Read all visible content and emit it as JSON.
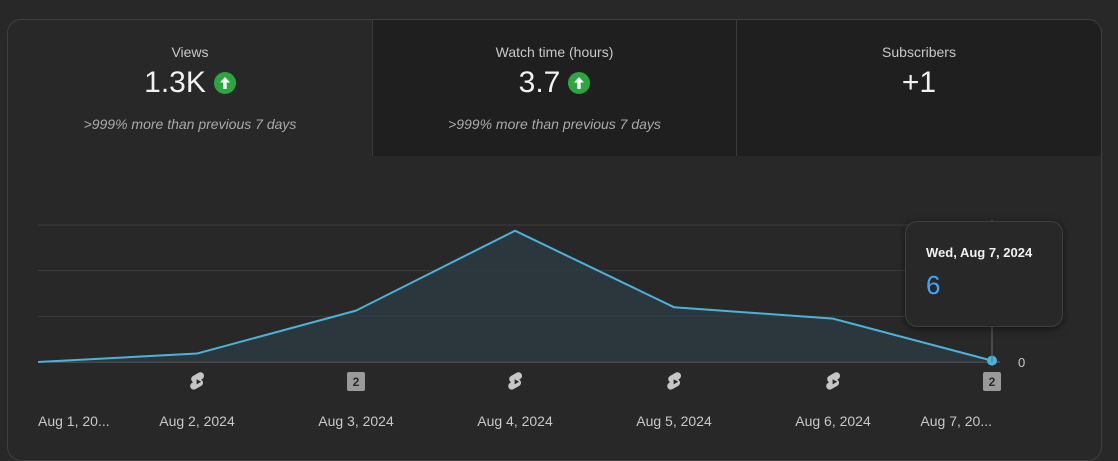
{
  "metrics": [
    {
      "label": "Views",
      "value": "1.3K",
      "trend": "up",
      "note": ">999% more than previous 7 days"
    },
    {
      "label": "Watch time (hours)",
      "value": "3.7",
      "trend": "up",
      "note": ">999% more than previous 7 days"
    },
    {
      "label": "Subscribers",
      "value": "+1"
    }
  ],
  "tooltip": {
    "date": "Wed, Aug 7, 2024",
    "value": "6"
  },
  "colors": {
    "line": "#4bb3d9",
    "trend_up": "#2ba640",
    "tooltip_value": "#3ea6ff"
  },
  "chart_data": {
    "type": "area",
    "x": [
      "Aug 1, 20...",
      "Aug 2, 2024",
      "Aug 3, 2024",
      "Aug 4, 2024",
      "Aug 5, 2024",
      "Aug 6, 2024",
      "Aug 7, 20..."
    ],
    "series": [
      {
        "values": [
          0,
          37,
          225,
          575,
          240,
          190,
          6
        ]
      }
    ],
    "yticks": [
      0,
      600
    ],
    "ylim": [
      0,
      600
    ],
    "grid": true,
    "markers": [
      {
        "icon": "shorts-icon",
        "label": ""
      },
      {
        "icon": "shorts-icon",
        "label": ""
      },
      {
        "icon": "count-badge",
        "label": "2"
      },
      {
        "icon": "shorts-icon",
        "label": ""
      },
      {
        "icon": "shorts-icon",
        "label": ""
      },
      {
        "icon": "shorts-icon",
        "label": ""
      },
      {
        "icon": "count-badge",
        "label": "2"
      }
    ]
  }
}
